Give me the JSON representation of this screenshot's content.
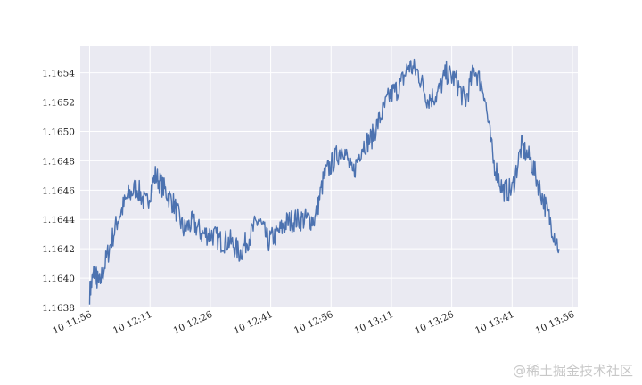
{
  "chart_data": {
    "type": "line",
    "title": "",
    "xlabel": "",
    "ylabel": "",
    "grid": true,
    "legend": "none",
    "colors": {
      "background": "#EAEAF2",
      "grid": "#FFFFFF",
      "line": "#4C72B0"
    },
    "xlim": [
      -20,
      1040
    ],
    "ylim": [
      1.1638,
      1.16558
    ],
    "x_unit": "seconds since 11:56",
    "x_ticks": [
      {
        "value": 0,
        "label": "10 11:56"
      },
      {
        "value": 900,
        "label": "10 12:11"
      },
      {
        "value": 1800,
        "label": "10 12:26"
      },
      {
        "value": 2700,
        "label": "10 12:41"
      },
      {
        "value": 3600,
        "label": "10 12:56"
      },
      {
        "value": 4500,
        "label": "10 13:11"
      },
      {
        "value": 5400,
        "label": "10 13:26"
      },
      {
        "value": 6300,
        "label": "10 13:41"
      },
      {
        "value": 7200,
        "label": "10 13:56"
      }
    ],
    "y_ticks": [
      {
        "value": 1.1638,
        "label": "1.1638"
      },
      {
        "value": 1.164,
        "label": "1.1640"
      },
      {
        "value": 1.1642,
        "label": "1.1642"
      },
      {
        "value": 1.1644,
        "label": "1.1644"
      },
      {
        "value": 1.1646,
        "label": "1.1646"
      },
      {
        "value": 1.1648,
        "label": "1.1648"
      },
      {
        "value": 1.165,
        "label": "1.1650"
      },
      {
        "value": 1.1652,
        "label": "1.1652"
      },
      {
        "value": 1.1654,
        "label": "1.1654"
      }
    ],
    "series": [
      {
        "name": "",
        "x": [
          0,
          10,
          20,
          40,
          60,
          80,
          100,
          120,
          140,
          160,
          180,
          200,
          220,
          240,
          260,
          280,
          300,
          320,
          340,
          360,
          380,
          400,
          420,
          440,
          460,
          480,
          500,
          520,
          540,
          560,
          580,
          600,
          620,
          640,
          660,
          680,
          700,
          720,
          740,
          760,
          780,
          800,
          820,
          840,
          860,
          880,
          900,
          920,
          940,
          960,
          980,
          1000
        ],
        "y": [
          1.1639,
          1.16405,
          1.16395,
          1.16418,
          1.1644,
          1.16455,
          1.16462,
          1.1645,
          1.1647,
          1.1646,
          1.1645,
          1.16433,
          1.16438,
          1.1643,
          1.1643,
          1.16425,
          1.16425,
          1.16417,
          1.16428,
          1.1644,
          1.16425,
          1.1643,
          1.16438,
          1.1644,
          1.1644,
          1.1644,
          1.1647,
          1.1648,
          1.1649,
          1.1647,
          1.1649,
          1.16495,
          1.1651,
          1.16525,
          1.1653,
          1.16545,
          1.1654,
          1.16522,
          1.16525,
          1.1654,
          1.16535,
          1.1652,
          1.16543,
          1.16528,
          1.1648,
          1.1646,
          1.1646,
          1.1649,
          1.1648,
          1.1646,
          1.1644,
          1.1642
        ]
      }
    ]
  },
  "watermark": "@稀土掘金技术社区"
}
